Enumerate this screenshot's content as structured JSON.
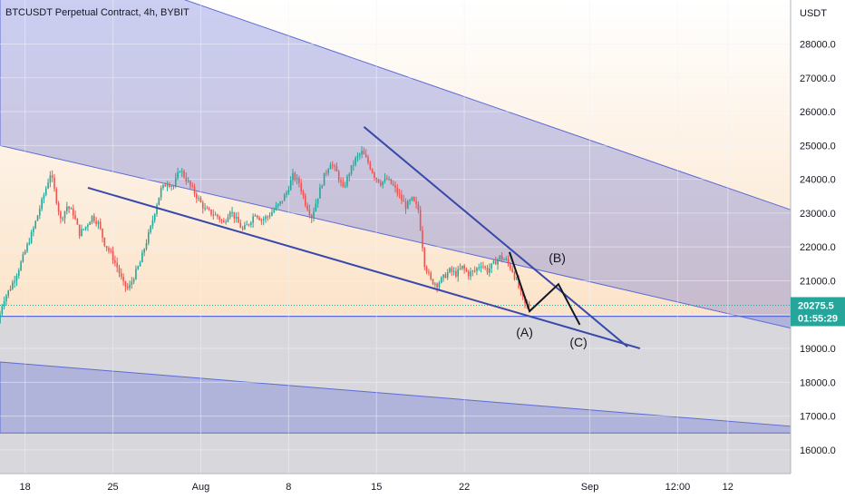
{
  "chart_data": {
    "type": "candlestick",
    "title": "BTCUSDT Perpetual Contract, 4h, BYBIT",
    "currency": "USDT",
    "ylim": [
      15300,
      29300
    ],
    "y_ticks": [
      {
        "value": 16000,
        "label": "16000.0"
      },
      {
        "value": 17000,
        "label": "17000.0"
      },
      {
        "value": 18000,
        "label": "18000.0"
      },
      {
        "value": 19000,
        "label": "19000.0"
      },
      {
        "value": 20000,
        "label": "20000.0"
      },
      {
        "value": 21000,
        "label": "21000.0"
      },
      {
        "value": 22000,
        "label": "22000.0"
      },
      {
        "value": 23000,
        "label": "23000.0"
      },
      {
        "value": 24000,
        "label": "24000.0"
      },
      {
        "value": 25000,
        "label": "25000.0"
      },
      {
        "value": 26000,
        "label": "26000.0"
      },
      {
        "value": 27000,
        "label": "27000.0"
      },
      {
        "value": 28000,
        "label": "28000.0"
      }
    ],
    "x_ticks": [
      {
        "day": 0,
        "label": "18"
      },
      {
        "day": 7,
        "label": "25"
      },
      {
        "day": 14,
        "label": "Aug"
      },
      {
        "day": 21,
        "label": "8"
      },
      {
        "day": 28,
        "label": "15"
      },
      {
        "day": 35,
        "label": "22"
      },
      {
        "day": 45,
        "label": "Sep"
      },
      {
        "day": 52,
        "label": "12:00"
      },
      {
        "day": 56,
        "label": "12"
      }
    ],
    "x_range_days": [
      -2.0,
      61.0
    ],
    "current_price": "20275.5",
    "countdown": "01:55:29",
    "colors": {
      "up": "#26a69a",
      "down": "#ef5350",
      "channel_fill": "#5c6bd6",
      "trendline": "#3949ab",
      "price_tag": "#26a69a",
      "wave_path": "#131722"
    },
    "price_path": [
      [
        -2.0,
        19750
      ],
      [
        -1.6,
        20400
      ],
      [
        -1.0,
        20800
      ],
      [
        -0.4,
        21300
      ],
      [
        0.2,
        21900
      ],
      [
        0.8,
        22500
      ],
      [
        1.3,
        23100
      ],
      [
        1.8,
        23700
      ],
      [
        2.2,
        24200
      ],
      [
        2.6,
        23500
      ],
      [
        3.0,
        22800
      ],
      [
        3.5,
        23200
      ],
      [
        4.0,
        23000
      ],
      [
        4.5,
        22400
      ],
      [
        5.0,
        22600
      ],
      [
        5.5,
        22900
      ],
      [
        6.0,
        22700
      ],
      [
        6.5,
        22100
      ],
      [
        7.0,
        21800
      ],
      [
        7.5,
        21400
      ],
      [
        8.0,
        20900
      ],
      [
        8.4,
        20750
      ],
      [
        8.8,
        21100
      ],
      [
        9.3,
        21500
      ],
      [
        9.7,
        22000
      ],
      [
        10.2,
        22600
      ],
      [
        10.6,
        23200
      ],
      [
        11.0,
        23700
      ],
      [
        11.5,
        23900
      ],
      [
        12.0,
        23800
      ],
      [
        12.5,
        24300
      ],
      [
        13.0,
        24000
      ],
      [
        13.5,
        23700
      ],
      [
        14.0,
        23400
      ],
      [
        14.5,
        23100
      ],
      [
        15.0,
        23000
      ],
      [
        15.5,
        22900
      ],
      [
        16.0,
        22700
      ],
      [
        16.5,
        23100
      ],
      [
        17.0,
        22800
      ],
      [
        17.5,
        22500
      ],
      [
        18.0,
        22700
      ],
      [
        18.5,
        23000
      ],
      [
        19.0,
        22800
      ],
      [
        19.5,
        22900
      ],
      [
        20.0,
        23100
      ],
      [
        20.5,
        23300
      ],
      [
        21.0,
        23600
      ],
      [
        21.5,
        24100
      ],
      [
        22.0,
        23900
      ],
      [
        22.5,
        23300
      ],
      [
        23.0,
        22900
      ],
      [
        23.5,
        23500
      ],
      [
        24.0,
        24100
      ],
      [
        24.5,
        24500
      ],
      [
        25.0,
        24200
      ],
      [
        25.5,
        23700
      ],
      [
        26.0,
        24200
      ],
      [
        26.5,
        24600
      ],
      [
        27.0,
        24800
      ],
      [
        27.5,
        24500
      ],
      [
        28.0,
        24100
      ],
      [
        28.5,
        23900
      ],
      [
        29.0,
        24000
      ],
      [
        29.5,
        23800
      ],
      [
        30.0,
        23500
      ],
      [
        30.5,
        23200
      ],
      [
        31.0,
        23400
      ],
      [
        31.5,
        23100
      ],
      [
        32.0,
        21500
      ],
      [
        32.5,
        21000
      ],
      [
        33.0,
        20900
      ],
      [
        33.5,
        21100
      ],
      [
        34.0,
        21300
      ],
      [
        34.5,
        21200
      ],
      [
        35.0,
        21400
      ],
      [
        35.5,
        21200
      ],
      [
        36.0,
        21300
      ],
      [
        36.5,
        21500
      ],
      [
        37.0,
        21300
      ],
      [
        37.5,
        21500
      ],
      [
        38.0,
        21700
      ],
      [
        38.5,
        21600
      ],
      [
        39.0,
        21300
      ],
      [
        39.5,
        20800
      ],
      [
        40.0,
        20300
      ],
      [
        40.3,
        20275
      ]
    ],
    "annotations": [
      {
        "text": "(A)",
        "day": 39.8,
        "price": 19350
      },
      {
        "text": "(B)",
        "day": 42.4,
        "price": 21550
      },
      {
        "text": "(C)",
        "day": 44.1,
        "price": 19050
      }
    ],
    "wave_path": [
      [
        38.6,
        21850
      ],
      [
        40.2,
        20100
      ],
      [
        42.5,
        20900
      ],
      [
        44.2,
        19700
      ]
    ],
    "trendlines": [
      {
        "from": [
          5.0,
          23750
        ],
        "to": [
          49.0,
          19000
        ]
      },
      {
        "from": [
          27.0,
          25550
        ],
        "to": [
          48.0,
          19050
        ]
      }
    ],
    "channels": [
      {
        "upper": [
          [
            -2.0,
            31200
          ],
          [
            61.0,
            23100
          ]
        ],
        "lower": [
          [
            -2.0,
            25000
          ],
          [
            61.0,
            19600
          ]
        ]
      },
      {
        "upper": [
          [
            -2.0,
            18600
          ],
          [
            61.0,
            16700
          ]
        ],
        "lower": [
          [
            -2.0,
            16500
          ],
          [
            61.0,
            16500
          ]
        ]
      }
    ],
    "support_level": 19950
  }
}
